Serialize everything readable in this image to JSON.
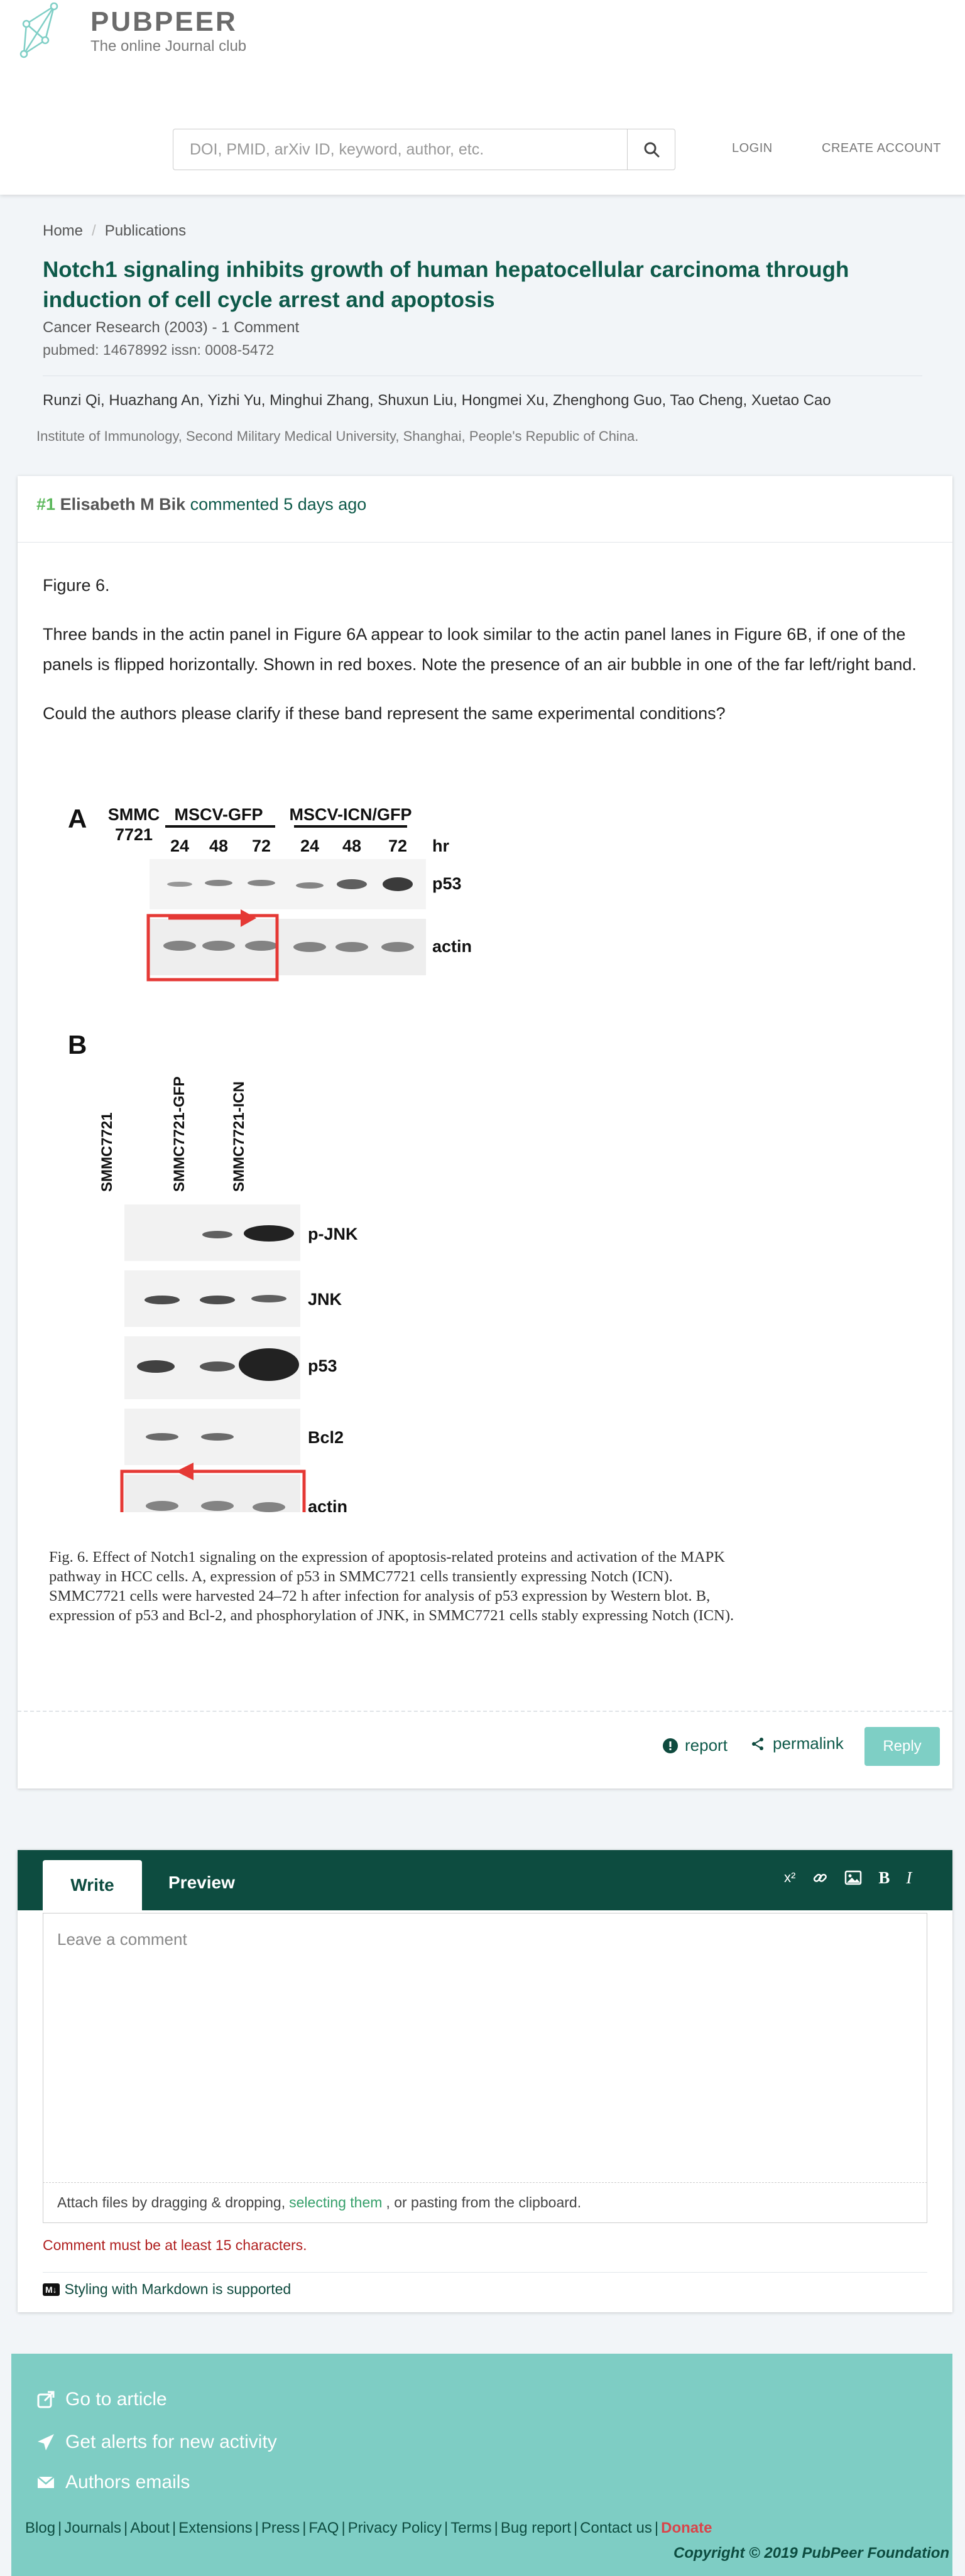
{
  "header": {
    "brand": "PUBPEER",
    "tagline": "The online Journal club",
    "search_placeholder": "DOI, PMID, arXiv ID, keyword, author, etc.",
    "login": "LOGIN",
    "create_account": "CREATE ACCOUNT"
  },
  "breadcrumb": {
    "home": "Home",
    "separator": "/",
    "current": "Publications"
  },
  "publication": {
    "title": "Notch1 signaling inhibits growth of human hepatocellular carcinoma through induction of cell cycle arrest and apoptosis",
    "journal_line": "Cancer Research (2003) - 1 Comment",
    "ids": "pubmed: 14678992  issn: 0008-5472",
    "authors": "Runzi Qi, Huazhang An, Yizhi Yu, Minghui Zhang, Shuxun Liu, Hongmei Xu, Zhenghong Guo, Tao Cheng, Xuetao Cao",
    "institution": "Institute of Immunology, Second Military Medical University, Shanghai, People's Republic of China."
  },
  "comment": {
    "number": "#1",
    "author": "Elisabeth M Bik",
    "meta": "commented 5 days ago",
    "paragraphs": [
      "Figure 6.",
      "Three bands in the actin panel in Figure 6A appear to look similar to the actin panel lanes in Figure 6B, if one of the panels is flipped horizontally. Shown in red boxes. Note the presence of an air bubble in one of the far left/right band.",
      "Could the authors please clarify if these band represent the same experimental conditions?"
    ],
    "figure": {
      "panel_a": {
        "letter": "A",
        "cell_line_top": "SMMC",
        "cell_line_bottom": "7721",
        "group1": "MSCV-GFP",
        "group2": "MSCV-ICN/GFP",
        "timepoints": [
          "24",
          "48",
          "72",
          "24",
          "48",
          "72"
        ],
        "unit": "hr",
        "rows": [
          "p53",
          "actin"
        ]
      },
      "panel_b": {
        "letter": "B",
        "lanes": [
          "SMMC7721",
          "SMMC7721-GFP",
          "SMMC7721-ICN"
        ],
        "rows": [
          "p-JNK",
          "JNK",
          "p53",
          "Bcl2",
          "actin"
        ]
      },
      "caption": "Fig. 6. Effect of Notch1 signaling on the expression of apoptosis-related proteins and activation of the MAPK pathway in HCC cells. A, expression of p53 in SMMC7721 cells transiently expressing Notch (ICN). SMMC7721 cells were harvested 24–72 h after infection for analysis of p53 expression by Western blot. B, expression of p53 and Bcl-2, and phosphorylation of JNK, in SMMC7721 cells stably expressing Notch (ICN)."
    },
    "actions": {
      "report": "report",
      "permalink": "permalink",
      "reply": "Reply"
    }
  },
  "editor": {
    "tab_write": "Write",
    "tab_preview": "Preview",
    "tools": {
      "superscript": "x²",
      "bold": "B",
      "italic": "I"
    },
    "placeholder": "Leave a comment",
    "attach_before": "Attach files by dragging & dropping,",
    "attach_link": "selecting them",
    "attach_after": ", or pasting from the clipboard.",
    "error": "Comment must be at least 15 characters.",
    "markdown_badge": "M↓",
    "markdown_note": "Styling with Markdown is supported"
  },
  "side_panel": {
    "go_to_article": "Go to article",
    "alerts": "Get alerts for new activity",
    "authors_emails": "Authors emails"
  },
  "footer": {
    "links": [
      "Blog",
      "Journals",
      "About",
      "Extensions",
      "Press",
      "FAQ",
      "Privacy Policy",
      "Terms",
      "Bug report",
      "Contact us"
    ],
    "donate": "Donate",
    "separator": "|",
    "copyright": "Copyright © 2019 PubPeer Foundation"
  },
  "colors": {
    "brand_dark": "#0d4c40",
    "title_green": "#0e5a4a",
    "accent_green": "#5cb85c",
    "teal": "#7ecdc4",
    "error_red": "#b02020",
    "highlight_box": "#e53935"
  }
}
